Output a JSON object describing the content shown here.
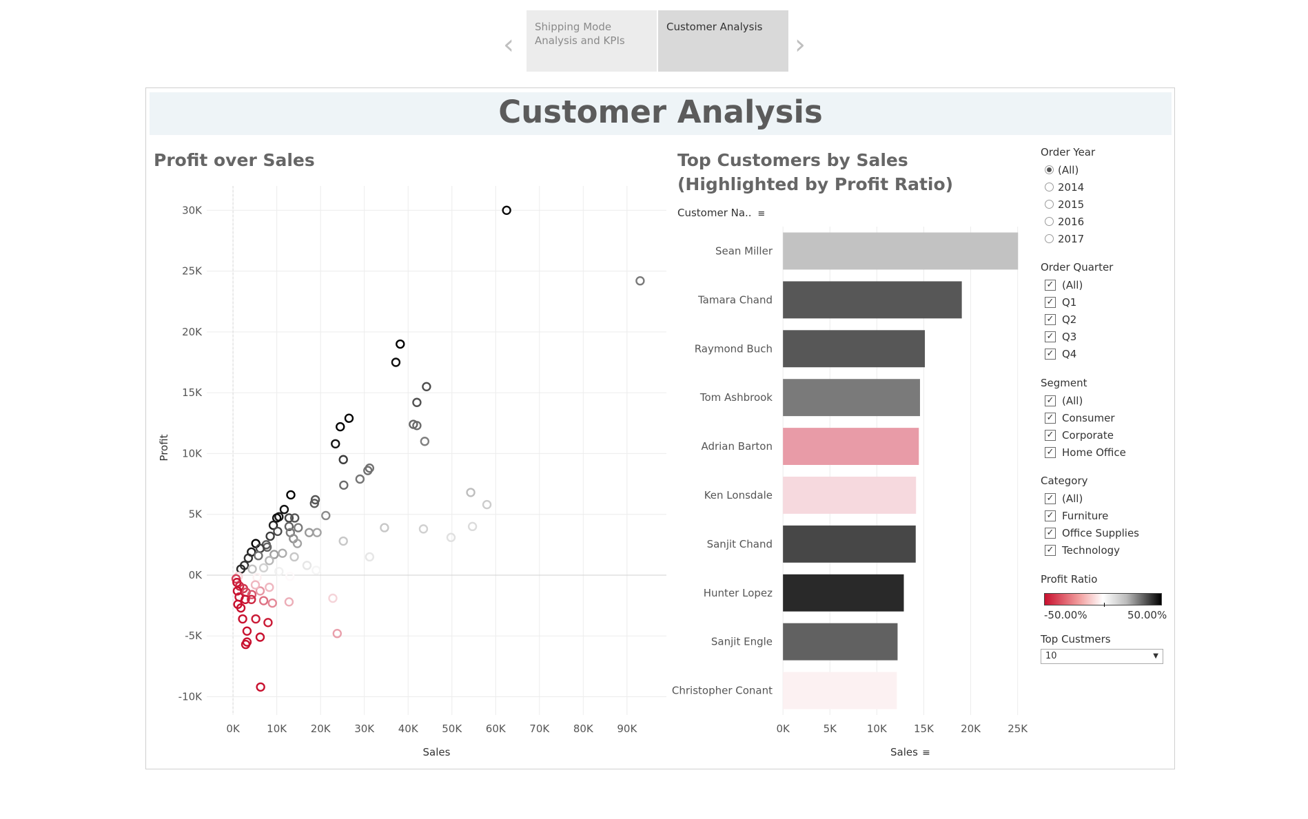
{
  "story": {
    "tabs": [
      {
        "label": "Shipping Mode Analysis and KPIs",
        "active": false
      },
      {
        "label": "Customer Analysis",
        "active": true
      }
    ],
    "prev_glyph": "‹",
    "next_glyph": "›"
  },
  "dashboard": {
    "title": "Customer Analysis"
  },
  "scatter": {
    "title": "Profit over Sales",
    "chart_data": {
      "type": "scatter",
      "xlabel": "Sales",
      "ylabel": "Profit",
      "xlim": [
        -6000,
        99000
      ],
      "ylim": [
        -11500,
        32000
      ],
      "xticks": [
        "0K",
        "10K",
        "20K",
        "30K",
        "40K",
        "50K",
        "60K",
        "70K",
        "80K",
        "90K"
      ],
      "xtick_values": [
        0,
        10000,
        20000,
        30000,
        40000,
        50000,
        60000,
        70000,
        80000,
        90000
      ],
      "yticks": [
        "-10K",
        "-5K",
        "0K",
        "5K",
        "10K",
        "15K",
        "20K",
        "25K",
        "30K"
      ],
      "ytick_values": [
        -10000,
        -5000,
        0,
        5000,
        10000,
        15000,
        20000,
        25000,
        30000
      ],
      "points": [
        {
          "x": 62500,
          "y": 30000,
          "r": 0.48
        },
        {
          "x": 93000,
          "y": 24200,
          "r": 0.26
        },
        {
          "x": 38200,
          "y": 19000,
          "r": 0.5
        },
        {
          "x": 37200,
          "y": 17500,
          "r": 0.47
        },
        {
          "x": 44200,
          "y": 15500,
          "r": 0.35
        },
        {
          "x": 42000,
          "y": 14200,
          "r": 0.34
        },
        {
          "x": 26500,
          "y": 12900,
          "r": 0.49
        },
        {
          "x": 24500,
          "y": 12200,
          "r": 0.5
        },
        {
          "x": 41200,
          "y": 12400,
          "r": 0.3
        },
        {
          "x": 42000,
          "y": 12300,
          "r": 0.29
        },
        {
          "x": 43800,
          "y": 11000,
          "r": 0.25
        },
        {
          "x": 23400,
          "y": 10800,
          "r": 0.46
        },
        {
          "x": 25200,
          "y": 9500,
          "r": 0.38
        },
        {
          "x": 31200,
          "y": 8800,
          "r": 0.28
        },
        {
          "x": 30800,
          "y": 8600,
          "r": 0.28
        },
        {
          "x": 29000,
          "y": 7900,
          "r": 0.27
        },
        {
          "x": 25300,
          "y": 7400,
          "r": 0.29
        },
        {
          "x": 54300,
          "y": 6800,
          "r": 0.13
        },
        {
          "x": 13200,
          "y": 6600,
          "r": 0.5
        },
        {
          "x": 18800,
          "y": 6200,
          "r": 0.33
        },
        {
          "x": 18600,
          "y": 5900,
          "r": 0.32
        },
        {
          "x": 58000,
          "y": 5800,
          "r": 0.1
        },
        {
          "x": 11700,
          "y": 5400,
          "r": 0.46
        },
        {
          "x": 21200,
          "y": 4900,
          "r": 0.23
        },
        {
          "x": 10500,
          "y": 4800,
          "r": 0.45
        },
        {
          "x": 10000,
          "y": 4700,
          "r": 0.47
        },
        {
          "x": 12800,
          "y": 4700,
          "r": 0.36
        },
        {
          "x": 14100,
          "y": 4700,
          "r": 0.33
        },
        {
          "x": 9200,
          "y": 4100,
          "r": 0.44
        },
        {
          "x": 12800,
          "y": 4000,
          "r": 0.31
        },
        {
          "x": 14900,
          "y": 3900,
          "r": 0.26
        },
        {
          "x": 34600,
          "y": 3900,
          "r": 0.11
        },
        {
          "x": 43500,
          "y": 3800,
          "r": 0.09
        },
        {
          "x": 54700,
          "y": 4000,
          "r": 0.07
        },
        {
          "x": 10200,
          "y": 3600,
          "r": 0.35
        },
        {
          "x": 13100,
          "y": 3500,
          "r": 0.26
        },
        {
          "x": 17400,
          "y": 3500,
          "r": 0.2
        },
        {
          "x": 19200,
          "y": 3500,
          "r": 0.18
        },
        {
          "x": 49800,
          "y": 3100,
          "r": 0.06
        },
        {
          "x": 8500,
          "y": 3200,
          "r": 0.38
        },
        {
          "x": 13800,
          "y": 3000,
          "r": 0.22
        },
        {
          "x": 25200,
          "y": 2800,
          "r": 0.11
        },
        {
          "x": 14700,
          "y": 2600,
          "r": 0.18
        },
        {
          "x": 7600,
          "y": 2500,
          "r": 0.32
        },
        {
          "x": 5200,
          "y": 2600,
          "r": 0.5
        },
        {
          "x": 7800,
          "y": 2300,
          "r": 0.3
        },
        {
          "x": 6200,
          "y": 2200,
          "r": 0.37
        },
        {
          "x": 4200,
          "y": 1900,
          "r": 0.45
        },
        {
          "x": 9400,
          "y": 1700,
          "r": 0.19
        },
        {
          "x": 11300,
          "y": 1800,
          "r": 0.16
        },
        {
          "x": 31200,
          "y": 1500,
          "r": 0.05
        },
        {
          "x": 14000,
          "y": 1500,
          "r": 0.11
        },
        {
          "x": 5800,
          "y": 1600,
          "r": 0.28
        },
        {
          "x": 3500,
          "y": 1400,
          "r": 0.4
        },
        {
          "x": 8300,
          "y": 1200,
          "r": 0.14
        },
        {
          "x": 16900,
          "y": 800,
          "r": 0.05
        },
        {
          "x": 19000,
          "y": 400,
          "r": 0.02
        },
        {
          "x": 10500,
          "y": 300,
          "r": 0.03
        },
        {
          "x": 7000,
          "y": 600,
          "r": 0.09
        },
        {
          "x": 2600,
          "y": 800,
          "r": 0.4
        },
        {
          "x": 1800,
          "y": 500,
          "r": 0.42
        },
        {
          "x": 4400,
          "y": 500,
          "r": 0.12
        },
        {
          "x": 13000,
          "y": -100,
          "r": -0.01
        },
        {
          "x": 5500,
          "y": -200,
          "r": -0.03
        },
        {
          "x": 1200,
          "y": -100,
          "r": -0.09
        },
        {
          "x": 700,
          "y": -300,
          "r": -0.4
        },
        {
          "x": 900,
          "y": -600,
          "r": -0.5
        },
        {
          "x": 1500,
          "y": -900,
          "r": -0.45
        },
        {
          "x": 2400,
          "y": -1100,
          "r": -0.42
        },
        {
          "x": 1000,
          "y": -1300,
          "r": -0.5
        },
        {
          "x": 3000,
          "y": -1400,
          "r": -0.38
        },
        {
          "x": 4300,
          "y": -1600,
          "r": -0.35
        },
        {
          "x": 6200,
          "y": -1300,
          "r": -0.22
        },
        {
          "x": 8300,
          "y": -1000,
          "r": -0.15
        },
        {
          "x": 5100,
          "y": -800,
          "r": -0.15
        },
        {
          "x": 1400,
          "y": -1800,
          "r": -0.48
        },
        {
          "x": 2800,
          "y": -2000,
          "r": -0.5
        },
        {
          "x": 4200,
          "y": -2000,
          "r": -0.45
        },
        {
          "x": 7000,
          "y": -2100,
          "r": -0.3
        },
        {
          "x": 9000,
          "y": -2300,
          "r": -0.25
        },
        {
          "x": 12800,
          "y": -2200,
          "r": -0.17
        },
        {
          "x": 22800,
          "y": -1900,
          "r": -0.09
        },
        {
          "x": 2200,
          "y": -3600,
          "r": -0.5
        },
        {
          "x": 5200,
          "y": -3600,
          "r": -0.48
        },
        {
          "x": 8000,
          "y": -3900,
          "r": -0.48
        },
        {
          "x": 3200,
          "y": -4600,
          "r": -0.5
        },
        {
          "x": 6200,
          "y": -5100,
          "r": -0.5
        },
        {
          "x": 3200,
          "y": -5500,
          "r": -0.5
        },
        {
          "x": 2900,
          "y": -5700,
          "r": -0.5
        },
        {
          "x": 23800,
          "y": -4800,
          "r": -0.2
        },
        {
          "x": 6300,
          "y": -9200,
          "r": -0.5
        },
        {
          "x": 1100,
          "y": -2400,
          "r": -0.5
        },
        {
          "x": 1800,
          "y": -2700,
          "r": -0.5
        }
      ]
    }
  },
  "bars": {
    "title": "Top Customers by Sales (Highlighted by Profit Ratio)",
    "header_label": "Customer Na..",
    "sort_glyph": "≡",
    "chart_data": {
      "type": "bar",
      "orientation": "horizontal",
      "xlabel": "Sales",
      "ylabel": "Customer Na..",
      "xlim": [
        -600,
        26200
      ],
      "xticks": [
        "0K",
        "5K",
        "10K",
        "15K",
        "20K",
        "25K"
      ],
      "xtick_values": [
        0,
        5000,
        10000,
        15000,
        20000,
        25000
      ],
      "categories": [
        "Sean Miller",
        "Tamara Chand",
        "Raymond Buch",
        "Tom Ashbrook",
        "Adrian Barton",
        "Ken Lonsdale",
        "Sanjit Chand",
        "Hunter Lopez",
        "Sanjit Engle",
        "Christopher Conant"
      ],
      "values": [
        25044,
        19052,
        15117,
        14596,
        14474,
        14175,
        14142,
        12873,
        12209,
        12129
      ],
      "profit_ratio": [
        0.12,
        0.33,
        0.33,
        0.26,
        -0.21,
        -0.08,
        0.36,
        0.42,
        0.31,
        -0.03
      ]
    }
  },
  "filters": {
    "order_year": {
      "title": "Order Year",
      "items": [
        "(All)",
        "2014",
        "2015",
        "2016",
        "2017"
      ],
      "selected": "(All)"
    },
    "order_quarter": {
      "title": "Order Quarter",
      "items": [
        "(All)",
        "Q1",
        "Q2",
        "Q3",
        "Q4"
      ]
    },
    "segment": {
      "title": "Segment",
      "items": [
        "(All)",
        "Consumer",
        "Corporate",
        "Home Office"
      ]
    },
    "category": {
      "title": "Category",
      "items": [
        "(All)",
        "Furniture",
        "Office Supplies",
        "Technology"
      ]
    },
    "check_glyph": "✓",
    "profit_ratio_legend": {
      "title": "Profit Ratio",
      "min_label": "-50.00%",
      "max_label": "50.00%"
    },
    "top_customers": {
      "title": "Top Custmers",
      "value": "10",
      "arrow_glyph": "▼"
    }
  },
  "colors": {
    "negative": "#c8102e",
    "neutral": "#ffffff",
    "positive": "#000000",
    "banner": "#eef4f7"
  }
}
